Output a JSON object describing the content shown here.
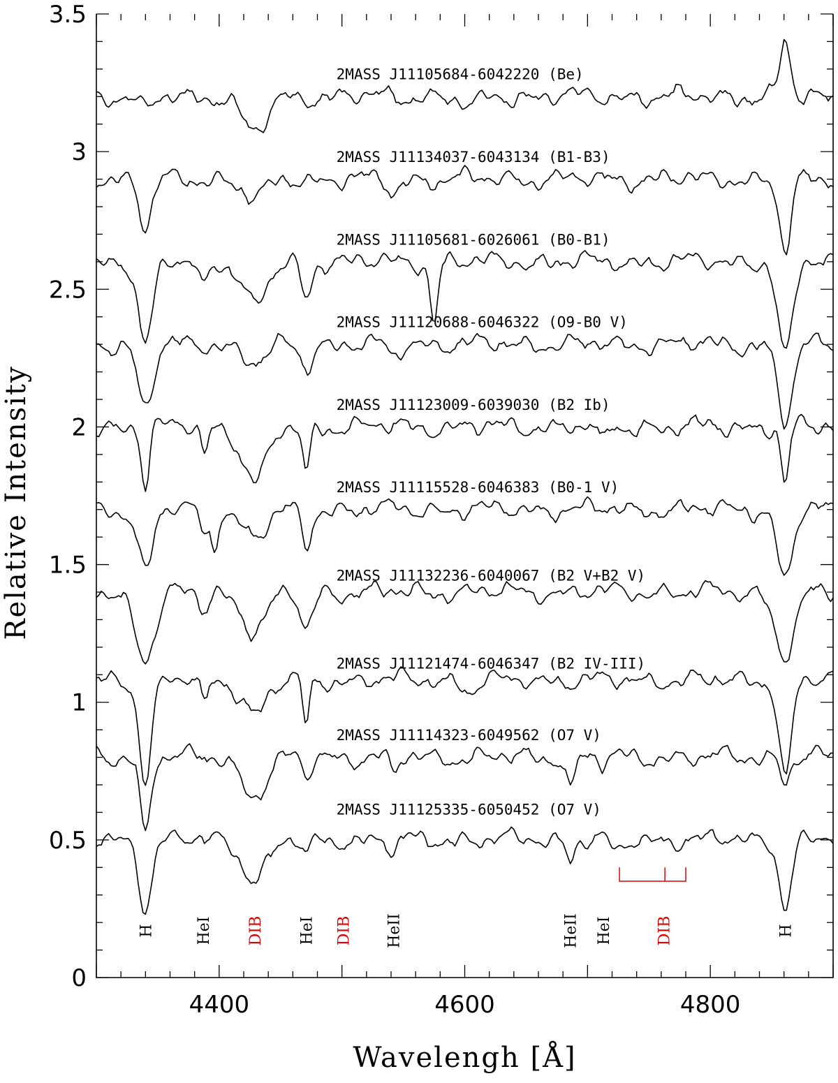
{
  "chart_data": {
    "type": "line",
    "title": "",
    "xlabel": "Wavelengh [Å]",
    "ylabel": "Relative Intensity",
    "xlim": [
      4300,
      4900
    ],
    "ylim": [
      0,
      3.5
    ],
    "x_ticks": [
      4400,
      4600,
      4800
    ],
    "y_ticks": [
      "0",
      "0.5",
      "1",
      "1.5",
      "2",
      "2.5",
      "3",
      "3.5"
    ],
    "y_tick_values": [
      0,
      0.5,
      1,
      1.5,
      2,
      2.5,
      3,
      3.5
    ],
    "series": [
      {
        "name": "2MASS J11105684-6042220 (Be)",
        "baseline": 3.2,
        "lines": [
          {
            "center": 4340,
            "depth": 0.05,
            "width": 6
          },
          {
            "center": 4429,
            "depth": 0.13,
            "width": 10
          },
          {
            "center": 4604,
            "depth": 0.04,
            "width": 8
          },
          {
            "center": 4861,
            "depth": -0.2,
            "width": 4
          }
        ]
      },
      {
        "name": "2MASS J11134037-6043134 (B1-B3)",
        "baseline": 2.9,
        "lines": [
          {
            "center": 4340,
            "depth": 0.18,
            "width": 5
          },
          {
            "center": 4429,
            "depth": 0.07,
            "width": 10
          },
          {
            "center": 4542,
            "depth": 0.05,
            "width": 5
          },
          {
            "center": 4861,
            "depth": 0.26,
            "width": 5
          }
        ]
      },
      {
        "name": "2MASS J11105681-6026061 (B0-B1)",
        "baseline": 2.6,
        "lines": [
          {
            "center": 4340,
            "depth": 0.3,
            "width": 6
          },
          {
            "center": 4387,
            "depth": 0.1,
            "width": 3
          },
          {
            "center": 4429,
            "depth": 0.16,
            "width": 10
          },
          {
            "center": 4471,
            "depth": 0.13,
            "width": 4
          },
          {
            "center": 4575,
            "depth": 0.22,
            "width": 3
          },
          {
            "center": 4861,
            "depth": 0.35,
            "width": 6
          }
        ]
      },
      {
        "name": "2MASS J11120688-6046322 (O9-B0 V)",
        "baseline": 2.3,
        "lines": [
          {
            "center": 4340,
            "depth": 0.24,
            "width": 6
          },
          {
            "center": 4429,
            "depth": 0.07,
            "width": 10
          },
          {
            "center": 4471,
            "depth": 0.09,
            "width": 4
          },
          {
            "center": 4542,
            "depth": 0.04,
            "width": 5
          },
          {
            "center": 4861,
            "depth": 0.28,
            "width": 6
          }
        ]
      },
      {
        "name": "2MASS J11123009-6039030 (B2 Ib)",
        "baseline": 2.0,
        "lines": [
          {
            "center": 4340,
            "depth": 0.22,
            "width": 3
          },
          {
            "center": 4388,
            "depth": 0.1,
            "width": 2.5
          },
          {
            "center": 4429,
            "depth": 0.2,
            "width": 10
          },
          {
            "center": 4471,
            "depth": 0.17,
            "width": 3
          },
          {
            "center": 4712,
            "depth": 0.07,
            "width": 3
          },
          {
            "center": 4861,
            "depth": 0.22,
            "width": 3
          }
        ]
      },
      {
        "name": "2MASS J11115528-6046383 (B0-1 V)",
        "baseline": 1.7,
        "lines": [
          {
            "center": 4340,
            "depth": 0.22,
            "width": 6
          },
          {
            "center": 4388,
            "depth": 0.1,
            "width": 3
          },
          {
            "center": 4396,
            "depth": 0.12,
            "width": 3
          },
          {
            "center": 4429,
            "depth": 0.1,
            "width": 10
          },
          {
            "center": 4471,
            "depth": 0.13,
            "width": 4
          },
          {
            "center": 4861,
            "depth": 0.26,
            "width": 6
          }
        ]
      },
      {
        "name": "2MASS J11132236-6040067 (B2 V+B2 V)",
        "baseline": 1.4,
        "lines": [
          {
            "center": 4340,
            "depth": 0.24,
            "width": 8
          },
          {
            "center": 4388,
            "depth": 0.06,
            "width": 4
          },
          {
            "center": 4429,
            "depth": 0.14,
            "width": 10
          },
          {
            "center": 4471,
            "depth": 0.13,
            "width": 5
          },
          {
            "center": 4861,
            "depth": 0.23,
            "width": 8
          }
        ]
      },
      {
        "name": "2MASS J11121474-6046347 (B2 IV-III)",
        "baseline": 1.08,
        "lines": [
          {
            "center": 4340,
            "depth": 0.36,
            "width": 5
          },
          {
            "center": 4388,
            "depth": 0.11,
            "width": 2.5
          },
          {
            "center": 4429,
            "depth": 0.12,
            "width": 10
          },
          {
            "center": 4471,
            "depth": 0.18,
            "width": 2.5
          },
          {
            "center": 4604,
            "depth": 0.04,
            "width": 6
          },
          {
            "center": 4861,
            "depth": 0.36,
            "width": 5
          }
        ]
      },
      {
        "name": "2MASS J11114323-6049562 (O7 V)",
        "baseline": 0.8,
        "lines": [
          {
            "center": 4340,
            "depth": 0.28,
            "width": 4
          },
          {
            "center": 4429,
            "depth": 0.14,
            "width": 10
          },
          {
            "center": 4471,
            "depth": 0.08,
            "width": 3
          },
          {
            "center": 4542,
            "depth": 0.07,
            "width": 3
          },
          {
            "center": 4686,
            "depth": 0.12,
            "width": 3
          },
          {
            "center": 4713,
            "depth": 0.03,
            "width": 3
          },
          {
            "center": 4861,
            "depth": 0.08,
            "width": 4
          }
        ]
      },
      {
        "name": "2MASS J11125335-6050452 (O7 V)",
        "baseline": 0.5,
        "lines": [
          {
            "center": 4340,
            "depth": 0.24,
            "width": 5
          },
          {
            "center": 4429,
            "depth": 0.14,
            "width": 10
          },
          {
            "center": 4471,
            "depth": 0.07,
            "width": 3
          },
          {
            "center": 4542,
            "depth": 0.06,
            "width": 3
          },
          {
            "center": 4686,
            "depth": 0.07,
            "width": 3
          },
          {
            "center": 4725,
            "depth": 0.04,
            "width": 6
          },
          {
            "center": 4861,
            "depth": 0.24,
            "width": 5
          }
        ]
      }
    ],
    "label_y_values": [
      3.28,
      2.98,
      2.68,
      2.38,
      2.08,
      1.78,
      1.46,
      1.14,
      0.88,
      0.61
    ],
    "label_x_value": 4500,
    "line_ids": [
      {
        "label": "H",
        "x": 4340,
        "color": "#000000"
      },
      {
        "label": "HeI",
        "x": 4387,
        "color": "#000000"
      },
      {
        "label": "DIB",
        "x": 4429,
        "color": "#e00000"
      },
      {
        "label": "HeI",
        "x": 4471,
        "color": "#000000"
      },
      {
        "label": "DIB",
        "x": 4501,
        "color": "#e00000"
      },
      {
        "label": "HeII",
        "x": 4542,
        "color": "#000000"
      },
      {
        "label": "HeII",
        "x": 4686,
        "color": "#000000"
      },
      {
        "label": "HeI",
        "x": 4713,
        "color": "#000000"
      },
      {
        "label": "DIB",
        "x": 4762,
        "color": "#e00000"
      },
      {
        "label": "H",
        "x": 4861,
        "color": "#000000"
      }
    ],
    "line_id_y_value": 0.17,
    "dib_bracket": {
      "x_start": 4726,
      "x_mid": 4763,
      "x_end": 4780,
      "y_top": 0.4,
      "y_base": 0.35,
      "color": "#e00000"
    }
  }
}
